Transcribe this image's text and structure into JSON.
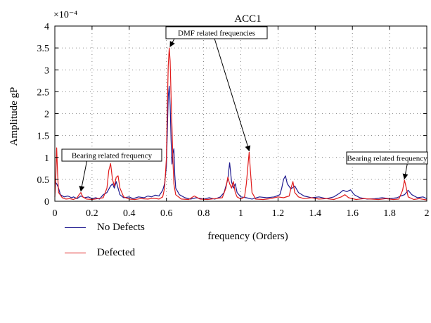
{
  "chart_data": {
    "type": "line",
    "title": "ACC1",
    "xlabel": "frequency (Orders)",
    "ylabel": "Amplitude gP",
    "y_multiplier": "×10⁻⁴",
    "xlim": [
      0,
      2
    ],
    "ylim": [
      0,
      4
    ],
    "xticks": [
      "0",
      "0.2",
      "0.4",
      "0.6",
      "0.8",
      "1",
      "1.2",
      "1.4",
      "1.6",
      "1.8",
      "2"
    ],
    "yticks": [
      "0",
      "0.5",
      "1",
      "1.5",
      "2",
      "2.5",
      "3",
      "3.5",
      "4"
    ],
    "grid": true,
    "legend_position": "bottom-left, below plot",
    "series": [
      {
        "name": "No Defects",
        "color": "#1f1a8f",
        "points": [
          [
            0.0,
            0.45
          ],
          [
            0.01,
            0.4
          ],
          [
            0.02,
            0.3
          ],
          [
            0.03,
            0.15
          ],
          [
            0.05,
            0.1
          ],
          [
            0.07,
            0.12
          ],
          [
            0.09,
            0.08
          ],
          [
            0.1,
            0.1
          ],
          [
            0.12,
            0.06
          ],
          [
            0.14,
            0.12
          ],
          [
            0.16,
            0.08
          ],
          [
            0.18,
            0.1
          ],
          [
            0.2,
            0.06
          ],
          [
            0.22,
            0.08
          ],
          [
            0.24,
            0.05
          ],
          [
            0.26,
            0.15
          ],
          [
            0.28,
            0.2
          ],
          [
            0.3,
            0.35
          ],
          [
            0.31,
            0.4
          ],
          [
            0.32,
            0.3
          ],
          [
            0.33,
            0.45
          ],
          [
            0.34,
            0.3
          ],
          [
            0.35,
            0.15
          ],
          [
            0.37,
            0.08
          ],
          [
            0.4,
            0.1
          ],
          [
            0.42,
            0.06
          ],
          [
            0.45,
            0.1
          ],
          [
            0.48,
            0.08
          ],
          [
            0.5,
            0.12
          ],
          [
            0.52,
            0.1
          ],
          [
            0.54,
            0.14
          ],
          [
            0.56,
            0.12
          ],
          [
            0.58,
            0.25
          ],
          [
            0.59,
            0.4
          ],
          [
            0.6,
            0.8
          ],
          [
            0.605,
            1.6
          ],
          [
            0.61,
            2.4
          ],
          [
            0.615,
            2.63
          ],
          [
            0.62,
            2.2
          ],
          [
            0.625,
            1.4
          ],
          [
            0.63,
            0.85
          ],
          [
            0.635,
            1.1
          ],
          [
            0.64,
            1.2
          ],
          [
            0.645,
            0.6
          ],
          [
            0.65,
            0.3
          ],
          [
            0.67,
            0.15
          ],
          [
            0.7,
            0.08
          ],
          [
            0.73,
            0.05
          ],
          [
            0.76,
            0.08
          ],
          [
            0.8,
            0.05
          ],
          [
            0.83,
            0.08
          ],
          [
            0.86,
            0.05
          ],
          [
            0.89,
            0.1
          ],
          [
            0.91,
            0.2
          ],
          [
            0.93,
            0.5
          ],
          [
            0.94,
            0.88
          ],
          [
            0.95,
            0.45
          ],
          [
            0.96,
            0.3
          ],
          [
            0.97,
            0.4
          ],
          [
            0.98,
            0.2
          ],
          [
            1.0,
            0.1
          ],
          [
            1.03,
            0.08
          ],
          [
            1.06,
            0.05
          ],
          [
            1.1,
            0.1
          ],
          [
            1.14,
            0.08
          ],
          [
            1.18,
            0.1
          ],
          [
            1.21,
            0.15
          ],
          [
            1.22,
            0.3
          ],
          [
            1.23,
            0.5
          ],
          [
            1.24,
            0.58
          ],
          [
            1.25,
            0.4
          ],
          [
            1.27,
            0.28
          ],
          [
            1.29,
            0.35
          ],
          [
            1.31,
            0.2
          ],
          [
            1.34,
            0.12
          ],
          [
            1.38,
            0.08
          ],
          [
            1.42,
            0.1
          ],
          [
            1.46,
            0.06
          ],
          [
            1.5,
            0.1
          ],
          [
            1.53,
            0.18
          ],
          [
            1.55,
            0.25
          ],
          [
            1.57,
            0.22
          ],
          [
            1.59,
            0.26
          ],
          [
            1.61,
            0.15
          ],
          [
            1.64,
            0.08
          ],
          [
            1.68,
            0.05
          ],
          [
            1.72,
            0.06
          ],
          [
            1.76,
            0.08
          ],
          [
            1.8,
            0.06
          ],
          [
            1.84,
            0.08
          ],
          [
            1.86,
            0.12
          ],
          [
            1.88,
            0.15
          ],
          [
            1.9,
            0.25
          ],
          [
            1.92,
            0.15
          ],
          [
            1.95,
            0.08
          ],
          [
            1.98,
            0.1
          ],
          [
            2.0,
            0.06
          ]
        ]
      },
      {
        "name": "Defected",
        "color": "#e01b1b",
        "points": [
          [
            0.0,
            0.1
          ],
          [
            0.005,
            0.5
          ],
          [
            0.01,
            1.22
          ],
          [
            0.015,
            0.6
          ],
          [
            0.02,
            0.2
          ],
          [
            0.04,
            0.08
          ],
          [
            0.06,
            0.05
          ],
          [
            0.08,
            0.06
          ],
          [
            0.1,
            0.04
          ],
          [
            0.12,
            0.08
          ],
          [
            0.13,
            0.15
          ],
          [
            0.14,
            0.2
          ],
          [
            0.15,
            0.1
          ],
          [
            0.17,
            0.05
          ],
          [
            0.2,
            0.04
          ],
          [
            0.23,
            0.06
          ],
          [
            0.26,
            0.08
          ],
          [
            0.28,
            0.3
          ],
          [
            0.29,
            0.7
          ],
          [
            0.3,
            0.86
          ],
          [
            0.31,
            0.5
          ],
          [
            0.32,
            0.35
          ],
          [
            0.33,
            0.55
          ],
          [
            0.34,
            0.58
          ],
          [
            0.35,
            0.3
          ],
          [
            0.37,
            0.1
          ],
          [
            0.4,
            0.05
          ],
          [
            0.43,
            0.04
          ],
          [
            0.46,
            0.06
          ],
          [
            0.5,
            0.05
          ],
          [
            0.53,
            0.07
          ],
          [
            0.56,
            0.05
          ],
          [
            0.58,
            0.1
          ],
          [
            0.59,
            0.3
          ],
          [
            0.6,
            1.0
          ],
          [
            0.605,
            2.2
          ],
          [
            0.61,
            3.1
          ],
          [
            0.615,
            3.5
          ],
          [
            0.62,
            3.2
          ],
          [
            0.625,
            2.4
          ],
          [
            0.63,
            1.7
          ],
          [
            0.635,
            0.9
          ],
          [
            0.64,
            0.4
          ],
          [
            0.65,
            0.15
          ],
          [
            0.68,
            0.05
          ],
          [
            0.72,
            0.04
          ],
          [
            0.75,
            0.12
          ],
          [
            0.78,
            0.05
          ],
          [
            0.82,
            0.04
          ],
          [
            0.86,
            0.06
          ],
          [
            0.9,
            0.08
          ],
          [
            0.92,
            0.3
          ],
          [
            0.93,
            0.55
          ],
          [
            0.94,
            0.4
          ],
          [
            0.95,
            0.3
          ],
          [
            0.96,
            0.45
          ],
          [
            0.97,
            0.2
          ],
          [
            0.98,
            0.1
          ],
          [
            1.0,
            0.05
          ],
          [
            1.02,
            0.1
          ],
          [
            1.03,
            0.4
          ],
          [
            1.04,
            0.9
          ],
          [
            1.045,
            1.12
          ],
          [
            1.05,
            0.8
          ],
          [
            1.06,
            0.2
          ],
          [
            1.08,
            0.05
          ],
          [
            1.12,
            0.04
          ],
          [
            1.16,
            0.06
          ],
          [
            1.2,
            0.1
          ],
          [
            1.23,
            0.08
          ],
          [
            1.26,
            0.12
          ],
          [
            1.27,
            0.3
          ],
          [
            1.28,
            0.45
          ],
          [
            1.29,
            0.2
          ],
          [
            1.31,
            0.1
          ],
          [
            1.34,
            0.06
          ],
          [
            1.38,
            0.08
          ],
          [
            1.42,
            0.05
          ],
          [
            1.46,
            0.06
          ],
          [
            1.5,
            0.04
          ],
          [
            1.54,
            0.1
          ],
          [
            1.56,
            0.15
          ],
          [
            1.58,
            0.08
          ],
          [
            1.62,
            0.04
          ],
          [
            1.66,
            0.06
          ],
          [
            1.7,
            0.05
          ],
          [
            1.74,
            0.04
          ],
          [
            1.78,
            0.06
          ],
          [
            1.82,
            0.04
          ],
          [
            1.85,
            0.05
          ],
          [
            1.87,
            0.25
          ],
          [
            1.88,
            0.48
          ],
          [
            1.89,
            0.3
          ],
          [
            1.9,
            0.1
          ],
          [
            1.93,
            0.04
          ],
          [
            1.96,
            0.06
          ],
          [
            2.0,
            0.03
          ]
        ]
      }
    ],
    "annotations": [
      {
        "label": "DMF related frequencies",
        "targets": [
          [
            0.62,
            3.5
          ],
          [
            1.045,
            1.12
          ]
        ]
      },
      {
        "label": "Bearing related frequency",
        "targets": [
          [
            0.14,
            0.2
          ]
        ]
      },
      {
        "label": "Bearing related frequency",
        "targets": [
          [
            1.88,
            0.48
          ]
        ]
      }
    ]
  }
}
